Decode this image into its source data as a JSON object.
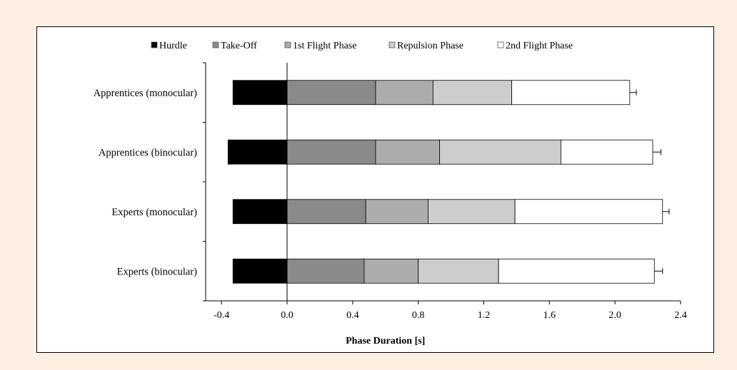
{
  "chart_data": {
    "type": "bar",
    "orientation": "horizontal",
    "stacked": true,
    "xlabel": "Phase Duration [s]",
    "ylabel": "",
    "xlim": [
      -0.5,
      2.4
    ],
    "xticks": [
      "-0.4",
      "0.0",
      "0.4",
      "0.8",
      "1.2",
      "1.6",
      "2.0",
      "2.4"
    ],
    "xtick_values": [
      -0.4,
      0.0,
      0.4,
      0.8,
      1.2,
      1.6,
      2.0,
      2.4
    ],
    "legend_placement": "top",
    "grid": false,
    "categories": [
      "Apprentices (monocular)",
      "Apprentices (binocular)",
      "Experts (monocular)",
      "Experts (binocular)"
    ],
    "series": [
      {
        "name": "Hurdle",
        "color": "#000000",
        "values": [
          -0.33,
          -0.36,
          -0.33,
          -0.33
        ]
      },
      {
        "name": "Take-Off",
        "color": "#8a8a8a",
        "values": [
          0.54,
          0.54,
          0.48,
          0.47
        ],
        "error": [
          0.02,
          0.02,
          0.02,
          0.02
        ]
      },
      {
        "name": "1st Flight Phase",
        "color": "#acacac",
        "values": [
          0.35,
          0.39,
          0.38,
          0.33
        ],
        "error": [
          0.02,
          0.02,
          0.02,
          0.02
        ]
      },
      {
        "name": "Repulsion Phase",
        "color": "#cdcdcd",
        "values": [
          0.48,
          0.74,
          0.53,
          0.49
        ],
        "error": [
          0.02,
          0.02,
          0.02,
          0.02
        ]
      },
      {
        "name": "2nd Flight Phase",
        "color": "#ffffff",
        "values": [
          0.72,
          0.56,
          0.9,
          0.95
        ],
        "error": [
          0.04,
          0.05,
          0.04,
          0.05
        ]
      }
    ]
  }
}
